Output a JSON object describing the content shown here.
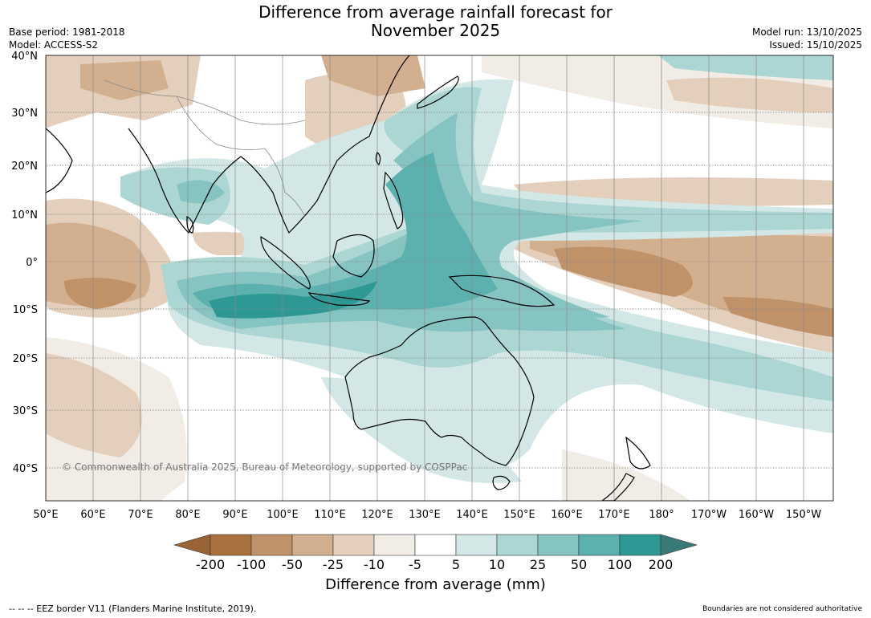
{
  "header": {
    "title_line1": "Difference from average rainfall forecast for",
    "title_line2": "November 2025",
    "base_period": "Base period: 1981-2018",
    "model": "Model: ACCESS-S2",
    "model_run": "Model run: 13/10/2025",
    "issued": "Issued: 15/10/2025"
  },
  "map": {
    "lat_labels": [
      "40°N",
      "30°N",
      "20°N",
      "10°N",
      "0°",
      "10°S",
      "20°S",
      "30°S",
      "40°S"
    ],
    "lon_labels": [
      "50°E",
      "60°E",
      "70°E",
      "80°E",
      "90°E",
      "100°E",
      "110°E",
      "120°E",
      "130°E",
      "140°E",
      "150°E",
      "160°E",
      "170°E",
      "180°",
      "170°W",
      "160°W",
      "150°W"
    ],
    "copyright": "© Commonwealth of Australia 2025, Bureau of Meteorology, supported by COSPPac"
  },
  "legend": {
    "tick_labels": [
      "-200",
      "-100",
      "-50",
      "-25",
      "-10",
      "-5",
      "5",
      "10",
      "25",
      "50",
      "100",
      "200"
    ],
    "colors": [
      "#9a6334",
      "#a9713d",
      "#c0926a",
      "#d2b08f",
      "#e3cfbb",
      "#f1ece5",
      "#ffffff",
      "#d3e8e6",
      "#abd6d3",
      "#86c4c1",
      "#5cb0ae",
      "#2d9894",
      "#3a7a76"
    ],
    "title": "Difference from average (mm)"
  },
  "footer": {
    "eez_note": "--  --  -- EEZ border V11 (Flanders Marine Institute, 2019).",
    "disclaimer": "Boundaries are not considered authoritative"
  }
}
